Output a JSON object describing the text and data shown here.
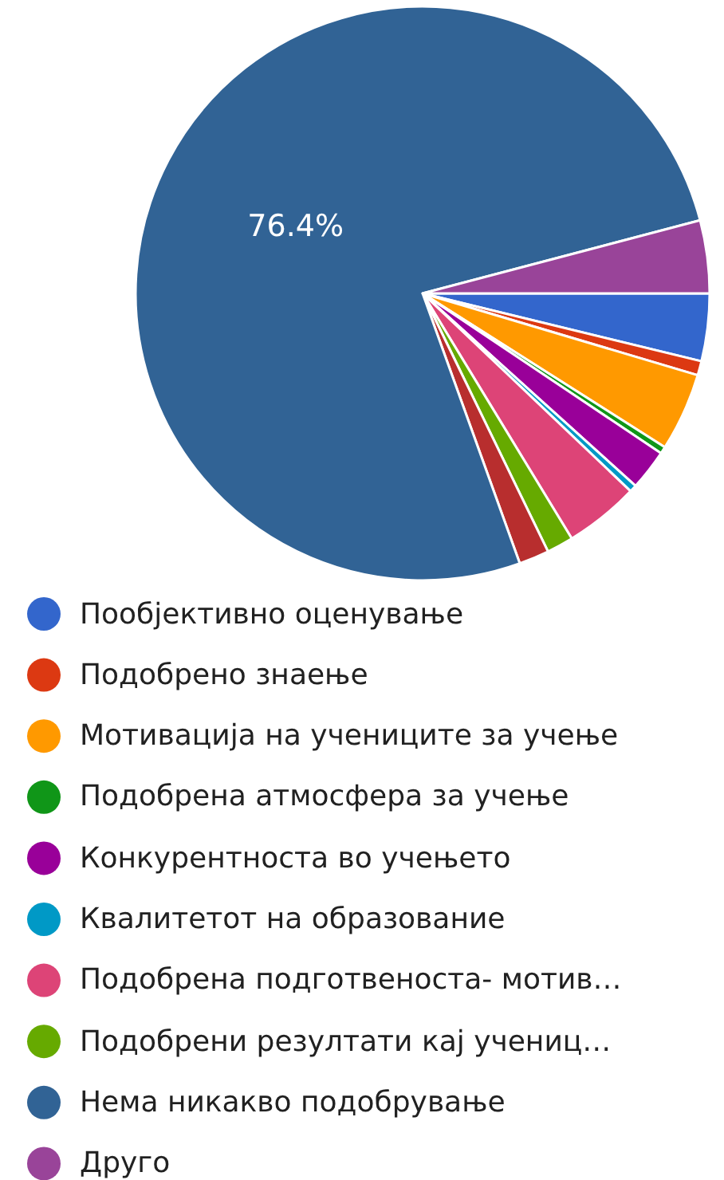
{
  "chart_data": {
    "type": "pie",
    "categories": [
      "Пообјективно оценување",
      "Подобрено знаење",
      "Мотивација на учениците за учење",
      "Подобрена атмосфера за учење",
      "Конкурентноста во учењето",
      "Квалитетот на образование",
      "Подобрена подготвеноста- мотив…",
      "Подобрени резултати кај учениц…",
      null,
      "Нема никакво подобрување",
      "Друго"
    ],
    "values": [
      3.8,
      0.8,
      4.4,
      0.4,
      2.3,
      0.4,
      4.2,
      1.5,
      1.7,
      76.4,
      4.1
    ],
    "colors": [
      "#3366cc",
      "#dc3912",
      "#ff9900",
      "#109618",
      "#990099",
      "#0099c6",
      "#dd4477",
      "#66aa00",
      "#b82e2e",
      "#316395",
      "#994499"
    ],
    "value_labels": [
      null,
      null,
      null,
      null,
      null,
      null,
      null,
      null,
      null,
      "76.4%",
      null
    ],
    "legend": "bottom"
  }
}
